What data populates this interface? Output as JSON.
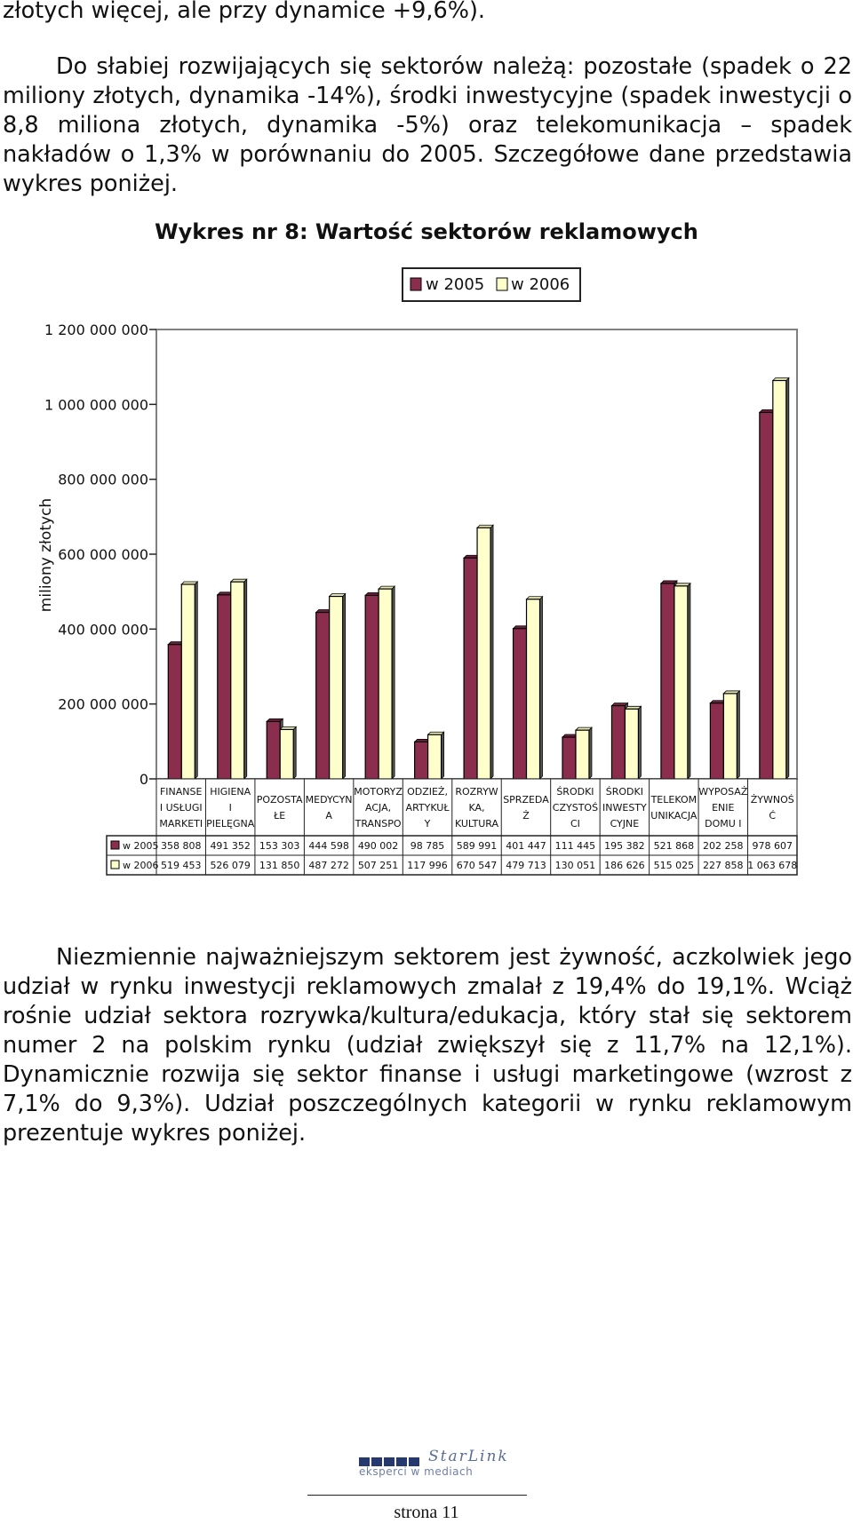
{
  "text": {
    "para1": "złotych więcej, ale przy dynamice +9,6%).",
    "para2": "Do słabiej rozwijających się sektorów należą: pozostałe (spadek o 22 miliony złotych, dynamika -14%), środki inwestycyjne (spadek inwestycji o 8,8 miliona złotych, dynamika -5%) oraz telekomunikacja – spadek nakładów o 1,3% w porównaniu do 2005. Szczegółowe dane przedstawia wykres poniżej.",
    "para3": "Niezmiennie najważniejszym sektorem jest żywność, aczkolwiek jego udział w rynku inwestycji reklamowych zmalał z 19,4% do 19,1%. Wciąż rośnie udział sektora rozrywka/kultura/edukacja, który stał się sektorem numer 2 na polskim rynku (udział zwiększył się z 11,7% na 12,1%). Dynamicznie rozwija się sektor finanse i usługi marketingowe (wzrost z 7,1% do 9,3%). Udział poszczególnych kategorii w rynku reklamowym prezentuje wykres poniżej."
  },
  "footer": {
    "brand": "StarLink",
    "tagline": "eksperci w mediach",
    "page": "strona 11"
  },
  "colors": {
    "series_2005": "#8b2e4e",
    "series_2006": "#ffffcc",
    "plot_border": "#808080",
    "text": "#111111"
  },
  "chart_data": {
    "type": "bar",
    "title": "Wykres nr 8: Wartość sektorów reklamowych",
    "ylabel": "miliony złotych",
    "ylim": [
      0,
      1200000000
    ],
    "yticks": [
      0,
      200000000,
      400000000,
      600000000,
      800000000,
      1000000000,
      1200000000
    ],
    "ytick_labels": [
      "0",
      "200 000 000",
      "400 000 000",
      "600 000 000",
      "800 000 000",
      "1 000 000 000",
      "1 200 000 000"
    ],
    "legend_position": "top-right",
    "categories": [
      [
        "FINANSE",
        "I USŁUGI",
        "MARKETI"
      ],
      [
        "HIGIENA",
        "I",
        "PIELĘGNA"
      ],
      [
        "POZOSTA",
        "ŁE"
      ],
      [
        "MEDYCYN",
        "A"
      ],
      [
        "MOTORYZ",
        "ACJA,",
        "TRANSPO"
      ],
      [
        "ODZIEŻ,",
        "ARTYKUŁ",
        "Y"
      ],
      [
        "ROZRYW",
        "KA,",
        "KULTURA"
      ],
      [
        "SPRZEDA",
        "Ż"
      ],
      [
        "ŚRODKI",
        "CZYSTOŚ",
        "CI"
      ],
      [
        "ŚRODKI",
        "INWESTY",
        "CYJNE"
      ],
      [
        "TELEKOM",
        "UNIKACJA"
      ],
      [
        "WYPOSAŻ",
        "ENIE",
        "DOMU I"
      ],
      [
        "ŻYWNOŚ",
        "Ć"
      ]
    ],
    "series": [
      {
        "name": "w 2005",
        "values": [
          358808000,
          491352000,
          153303000,
          444598000,
          490002000,
          98785000,
          589991000,
          401447000,
          111445000,
          195382000,
          521868000,
          202258000,
          978607000
        ],
        "table_labels": [
          "358 808",
          "491 352",
          "153 303",
          "444 598",
          "490 002",
          "98 785",
          "589 991",
          "401 447",
          "111 445",
          "195 382",
          "521 868",
          "202 258",
          "978 607"
        ]
      },
      {
        "name": "w 2006",
        "values": [
          519453000,
          526079000,
          131850000,
          487272000,
          507251000,
          117996000,
          670547000,
          479713000,
          130051000,
          186626000,
          515025000,
          227858000,
          1063678000
        ],
        "table_labels": [
          "519 453",
          "526 079",
          "131 850",
          "487 272",
          "507 251",
          "117 996",
          "670 547",
          "479 713",
          "130 051",
          "186 626",
          "515 025",
          "227 858",
          "1 063 678"
        ]
      }
    ]
  }
}
